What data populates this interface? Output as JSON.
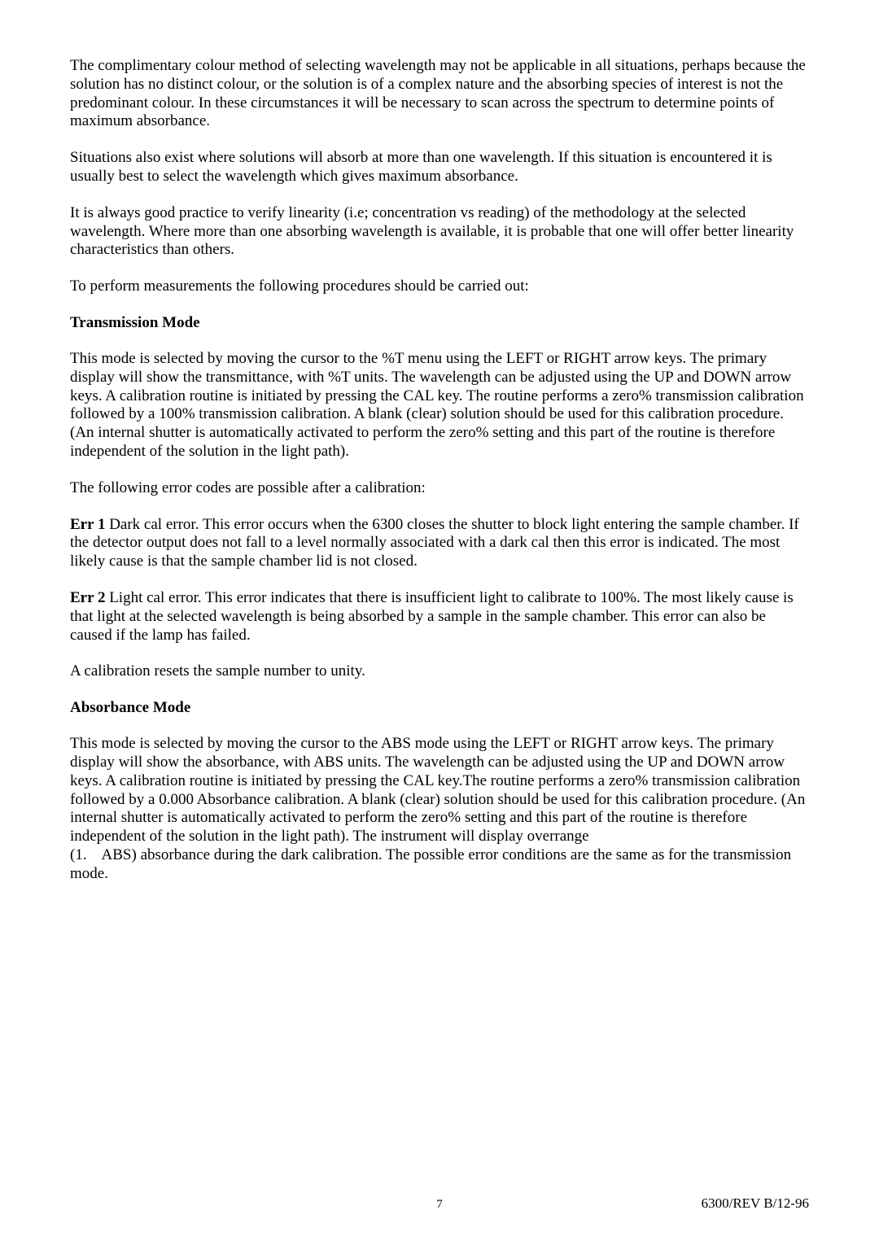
{
  "paragraphs": {
    "p1": "The complimentary colour method of selecting wavelength may not be applicable in all situations, perhaps because the solution has no distinct colour, or the solution is of a complex nature and the absorbing species of interest is not the predominant colour. In these circumstances it will be necessary to scan across the spectrum to determine points of maximum absorbance.",
    "p2": "Situations also exist where solutions will absorb at more than one wavelength. If this situation is encountered it is usually best to select the wavelength which gives maximum absorbance.",
    "p3": "It is always good practice to verify linearity (i.e; concentration vs reading) of the methodology at the selected wavelength. Where more than one absorbing wavelength is available, it is probable that one will offer better linearity characteristics than others.",
    "p4": "To perform measurements the following procedures should be carried out:",
    "h1": "Transmission Mode",
    "p5": "This mode is selected by moving the cursor to the %T menu using the LEFT or RIGHT arrow keys. The primary display will show the transmittance, with %T units. The wavelength can be adjusted using the UP and DOWN arrow keys. A calibration routine is initiated by pressing the CAL key. The routine performs a zero% transmission calibration followed by a 100% transmission calibration. A blank (clear) solution should be used for this calibration procedure. (An internal shutter is automatically activated to perform the zero% setting and this part of the routine is therefore independent of the solution in the light path).",
    "p6": "The following error codes are possible after a calibration:",
    "err1_label": "Err 1",
    "err1_text": " Dark cal error. This error occurs when the 6300 closes the shutter to block light entering the sample chamber. If the detector output does not fall to a level normally associated with a dark cal then this error is indicated. The most likely cause is that the sample chamber lid is not closed.",
    "err2_label": "Err 2",
    "err2_text": " Light cal error. This error indicates that there is insufficient light to calibrate to 100%. The most likely cause is that light at the selected wavelength is being absorbed by a sample in the sample chamber. This error can also be caused if the lamp has failed.",
    "p9": "A calibration resets the sample number to unity.",
    "h2": "Absorbance Mode",
    "p10": "This mode is selected by moving the cursor to the ABS mode using the LEFT or RIGHT arrow keys. The primary display will show the absorbance, with ABS units. The wavelength can be adjusted using the UP and DOWN arrow keys. A calibration routine is initiated by pressing the CAL key.The routine performs a zero% transmission calibration followed by a 0.000 Absorbance calibration. A blank (clear) solution should be used for this calibration procedure. (An internal shutter is automatically activated to perform the zero% setting and this part of the routine is therefore independent of the solution in the light path). The instrument will display overrange",
    "p11": "(1.    ABS) absorbance during the dark calibration. The possible error conditions are the same as for the transmission mode."
  },
  "footer": {
    "page_number": "7",
    "revision": "6300/REV  B/12-96"
  }
}
